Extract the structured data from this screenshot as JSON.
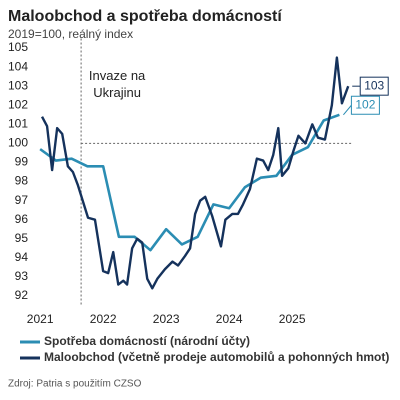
{
  "chart_data": {
    "type": "line",
    "title": "Maloobchod a spotřeba domácností",
    "subtitle": "2019=100, reálný index",
    "source": "Zdroj: Patria s použitím CZSO",
    "annotation": {
      "text": "Invaze na Ukrajinu",
      "x": 2022.15
    },
    "hline": 100,
    "xlim": [
      2021.45,
      2026.45
    ],
    "xticks": [
      {
        "value": 2021.5,
        "label": "2021"
      },
      {
        "value": 2022.5,
        "label": "2022"
      },
      {
        "value": 2023.5,
        "label": "2023"
      },
      {
        "value": 2024.5,
        "label": "2024"
      },
      {
        "value": 2025.5,
        "label": "2025"
      }
    ],
    "ylim": [
      91.5,
      105.5
    ],
    "yticks": [
      92,
      93,
      94,
      95,
      96,
      97,
      98,
      99,
      100,
      101,
      102,
      103,
      104,
      105
    ],
    "series": [
      {
        "name": "Spotřeba domácností (národní účty)",
        "color": "#2b8db3",
        "x": [
          2021.5,
          2021.75,
          2022.0,
          2022.25,
          2022.5,
          2022.75,
          2023.0,
          2023.25,
          2023.5,
          2023.75,
          2024.0,
          2024.25,
          2024.5,
          2024.75,
          2025.0,
          2025.25,
          2025.5,
          2025.75,
          2026.0,
          2026.25
        ],
        "values": [
          99.7,
          99.1,
          99.2,
          98.8,
          98.8,
          95.1,
          95.1,
          94.4,
          95.5,
          94.7,
          95.1,
          96.8,
          96.6,
          97.7,
          98.2,
          98.3,
          99.4,
          99.8,
          101.2,
          101.5
        ],
        "end_label": {
          "value": 102,
          "label": "102"
        }
      },
      {
        "name": "Maloobchod (včetně prodeje automobilů a pohonných hmot)",
        "color": "#15325c",
        "x": [
          2021.53,
          2021.61,
          2021.69,
          2021.77,
          2021.85,
          2021.94,
          2022.02,
          2022.1,
          2022.26,
          2022.37,
          2022.5,
          2022.58,
          2022.66,
          2022.74,
          2022.82,
          2022.88,
          2022.96,
          2023.04,
          2023.12,
          2023.2,
          2023.28,
          2023.36,
          2023.48,
          2023.6,
          2023.69,
          2023.8,
          2023.88,
          2023.96,
          2024.04,
          2024.12,
          2024.23,
          2024.37,
          2024.44,
          2024.55,
          2024.64,
          2024.72,
          2024.83,
          2024.94,
          2025.04,
          2025.12,
          2025.2,
          2025.28,
          2025.34,
          2025.44,
          2025.52,
          2025.6,
          2025.71,
          2025.82,
          2025.91,
          2026.02,
          2026.13,
          2026.21,
          2026.29,
          2026.39
        ],
        "values": [
          101.4,
          100.9,
          98.6,
          100.8,
          100.5,
          98.8,
          98.5,
          97.8,
          96.1,
          96.0,
          93.3,
          93.2,
          94.3,
          92.6,
          92.8,
          92.6,
          94.5,
          95.0,
          94.8,
          92.9,
          92.4,
          92.9,
          93.4,
          93.8,
          93.6,
          94.1,
          94.5,
          96.3,
          97.0,
          97.2,
          96.2,
          94.6,
          96.0,
          96.3,
          96.3,
          96.8,
          97.6,
          99.2,
          99.1,
          98.6,
          99.4,
          100.8,
          98.3,
          98.7,
          99.6,
          100.4,
          100.0,
          101.0,
          100.3,
          100.2,
          102.0,
          104.5,
          102.1,
          103.0
        ],
        "end_label": {
          "value": 103,
          "label": "103"
        }
      }
    ]
  }
}
